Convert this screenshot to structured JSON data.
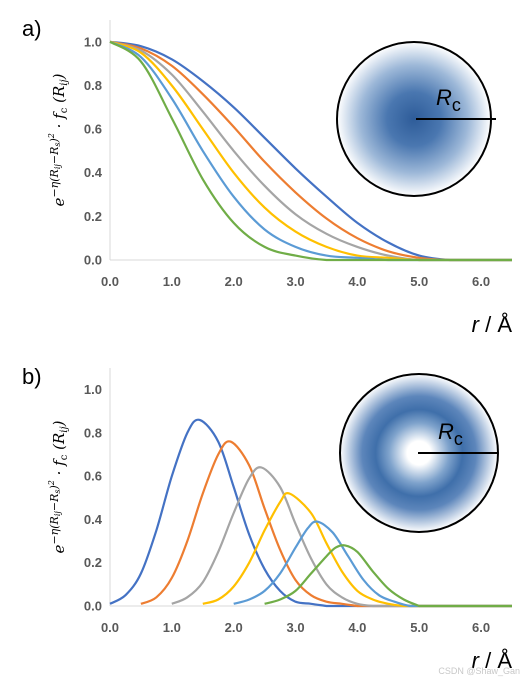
{
  "chart_data": [
    {
      "type": "line",
      "panel_label": "a)",
      "ylabel": "e^{−η(R_ij−R_s)^2} · f_c(R_ij)",
      "ylabel_parts": {
        "base": "e",
        "exponent": "−η(R",
        "exp_sub1": "ij",
        "exp_mid": "−R",
        "exp_sub2": "s",
        "exp_end": ")",
        "exp_power": "2",
        "dot": " · f",
        "fc_sub": "c",
        "arg": "(R",
        "arg_sub": "ij",
        "arg_end": ")"
      },
      "xlabel": "r",
      "xunit": "Å",
      "xlim": [
        0,
        6.5
      ],
      "ylim": [
        0,
        1.1
      ],
      "xticks": [
        "0.0",
        "1.0",
        "2.0",
        "3.0",
        "4.0",
        "5.0",
        "6.0"
      ],
      "yticks": [
        "0.0",
        "0.2",
        "0.4",
        "0.6",
        "0.8",
        "1.0"
      ],
      "cutoff": 5.0,
      "series": [
        {
          "color": "#4472c4",
          "x": [
            0,
            0.5,
            1.0,
            1.5,
            2.0,
            2.5,
            3.0,
            3.5,
            4.0,
            4.5,
            5.0,
            5.5,
            6.0
          ],
          "values": [
            1.0,
            0.98,
            0.92,
            0.82,
            0.7,
            0.56,
            0.42,
            0.29,
            0.17,
            0.08,
            0.02,
            0.0,
            0.0
          ]
        },
        {
          "color": "#ed7d31",
          "x": [
            0,
            0.5,
            1.0,
            1.5,
            2.0,
            2.5,
            3.0,
            3.5,
            4.0,
            4.5,
            5.0,
            5.5,
            6.0
          ],
          "values": [
            1.0,
            0.97,
            0.89,
            0.76,
            0.61,
            0.45,
            0.31,
            0.19,
            0.1,
            0.04,
            0.01,
            0.0,
            0.0
          ]
        },
        {
          "color": "#a5a5a5",
          "x": [
            0,
            0.5,
            1.0,
            1.5,
            2.0,
            2.5,
            3.0,
            3.5,
            4.0,
            4.5,
            5.0,
            5.5,
            6.0
          ],
          "values": [
            1.0,
            0.96,
            0.85,
            0.68,
            0.5,
            0.34,
            0.21,
            0.12,
            0.06,
            0.02,
            0.0,
            0.0,
            0.0
          ]
        },
        {
          "color": "#ffc000",
          "x": [
            0,
            0.5,
            1.0,
            1.5,
            2.0,
            2.5,
            3.0,
            3.5,
            4.0,
            4.5,
            5.0,
            5.5,
            6.0
          ],
          "values": [
            1.0,
            0.95,
            0.8,
            0.6,
            0.4,
            0.24,
            0.13,
            0.06,
            0.02,
            0.01,
            0.0,
            0.0,
            0.0
          ]
        },
        {
          "color": "#5b9bd5",
          "x": [
            0,
            0.5,
            1.0,
            1.5,
            2.0,
            2.5,
            3.0,
            3.5,
            4.0,
            4.5,
            5.0,
            5.5,
            6.0
          ],
          "values": [
            1.0,
            0.93,
            0.74,
            0.5,
            0.29,
            0.14,
            0.06,
            0.02,
            0.01,
            0.0,
            0.0,
            0.0,
            0.0
          ]
        },
        {
          "color": "#70ad47",
          "x": [
            0,
            0.5,
            1.0,
            1.5,
            2.0,
            2.5,
            3.0,
            3.5,
            4.0,
            4.5,
            5.0,
            5.5,
            6.0
          ],
          "values": [
            1.0,
            0.91,
            0.65,
            0.37,
            0.17,
            0.06,
            0.02,
            0.0,
            0.0,
            0.0,
            0.0,
            0.0,
            0.0
          ]
        }
      ],
      "inset": {
        "label": "R",
        "label_sub": "c",
        "style": "center-peak"
      },
      "grid": false,
      "legend": "none"
    },
    {
      "type": "line",
      "panel_label": "b)",
      "ylabel": "e^{−η(R_ij−R_s)^2} · f_c(R_ij)",
      "xlabel": "r",
      "xunit": "Å",
      "xlim": [
        0,
        6.5
      ],
      "ylim": [
        0,
        1.1
      ],
      "xticks": [
        "0.0",
        "1.0",
        "2.0",
        "3.0",
        "4.0",
        "5.0",
        "6.0"
      ],
      "yticks": [
        "0.0",
        "0.2",
        "0.4",
        "0.6",
        "0.8",
        "1.0"
      ],
      "series": [
        {
          "color": "#4472c4",
          "x": [
            0,
            0.25,
            0.5,
            0.75,
            1.0,
            1.25,
            1.45,
            1.75,
            2.0,
            2.25,
            2.5,
            2.75,
            3.0,
            3.25,
            3.5
          ],
          "values": [
            0.01,
            0.05,
            0.15,
            0.35,
            0.6,
            0.8,
            0.86,
            0.76,
            0.55,
            0.33,
            0.17,
            0.07,
            0.02,
            0.01,
            0.0
          ]
        },
        {
          "color": "#ed7d31",
          "x": [
            0.5,
            0.75,
            1.0,
            1.25,
            1.5,
            1.75,
            1.95,
            2.25,
            2.5,
            2.75,
            3.0,
            3.25,
            3.5,
            3.75,
            4.0
          ],
          "values": [
            0.01,
            0.04,
            0.13,
            0.3,
            0.52,
            0.7,
            0.76,
            0.65,
            0.45,
            0.26,
            0.12,
            0.05,
            0.02,
            0.01,
            0.0
          ]
        },
        {
          "color": "#a5a5a5",
          "x": [
            1.0,
            1.25,
            1.5,
            1.75,
            2.0,
            2.25,
            2.45,
            2.75,
            3.0,
            3.25,
            3.5,
            3.75,
            4.0,
            4.25,
            4.5
          ],
          "values": [
            0.01,
            0.04,
            0.11,
            0.25,
            0.43,
            0.59,
            0.64,
            0.55,
            0.38,
            0.22,
            0.1,
            0.04,
            0.01,
            0.0,
            0.0
          ]
        },
        {
          "color": "#ffc000",
          "x": [
            1.5,
            1.75,
            2.0,
            2.25,
            2.5,
            2.75,
            2.9,
            3.25,
            3.5,
            3.75,
            4.0,
            4.25,
            4.5,
            4.75,
            5.0
          ],
          "values": [
            0.01,
            0.03,
            0.09,
            0.2,
            0.35,
            0.48,
            0.52,
            0.43,
            0.29,
            0.16,
            0.07,
            0.03,
            0.01,
            0.0,
            0.0
          ]
        },
        {
          "color": "#5b9bd5",
          "x": [
            2.0,
            2.25,
            2.5,
            2.75,
            3.0,
            3.2,
            3.35,
            3.6,
            3.85,
            4.1,
            4.35,
            4.6,
            4.85,
            5.0
          ],
          "values": [
            0.01,
            0.03,
            0.07,
            0.15,
            0.27,
            0.36,
            0.39,
            0.34,
            0.23,
            0.12,
            0.05,
            0.02,
            0.0,
            0.0
          ]
        },
        {
          "color": "#70ad47",
          "x": [
            2.5,
            2.75,
            3.0,
            3.25,
            3.5,
            3.65,
            3.8,
            4.0,
            4.25,
            4.5,
            4.75,
            5.0
          ],
          "values": [
            0.01,
            0.03,
            0.07,
            0.15,
            0.23,
            0.27,
            0.28,
            0.25,
            0.16,
            0.08,
            0.03,
            0.0
          ]
        }
      ],
      "inset": {
        "label": "R",
        "label_sub": "c",
        "style": "ring"
      },
      "grid": false,
      "legend": "none"
    }
  ],
  "colors": {
    "axis": "#d9d9d9",
    "tick_text": "#595959",
    "inset_blue": "#2e5c99"
  },
  "watermark": "CSDN @Shaw_Gan"
}
